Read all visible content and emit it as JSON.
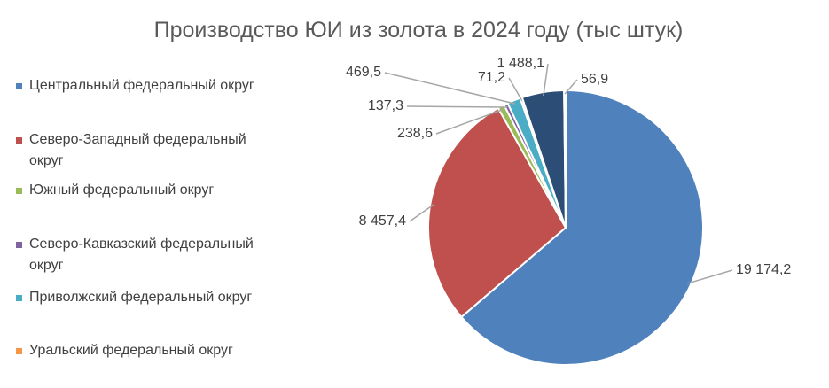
{
  "chart_data": {
    "type": "pie",
    "title": "Производство ЮИ из золота в 2024 году (тыс штук)",
    "categories": [
      "Центральный федеральный округ",
      "Северо-Западный федеральный округ",
      "Южный федеральный округ",
      "Северо-Кавказский федеральный округ",
      "Приволжский федеральный округ",
      "Уральский федеральный округ",
      null,
      null
    ],
    "values": [
      19174.2,
      8457.4,
      238.6,
      137.3,
      469.5,
      71.2,
      1488.1,
      56.9
    ],
    "value_labels": [
      "19 174,2",
      "8 457,4",
      "238,6",
      "137,3",
      "469,5",
      "71,2",
      "1 488,1",
      "56,9"
    ],
    "colors": [
      "#4f81bd",
      "#c0504d",
      "#9bbb59",
      "#8064a2",
      "#4bacc6",
      "#f79646",
      "#2c4d75",
      "#772c2a"
    ],
    "legend": "left"
  }
}
